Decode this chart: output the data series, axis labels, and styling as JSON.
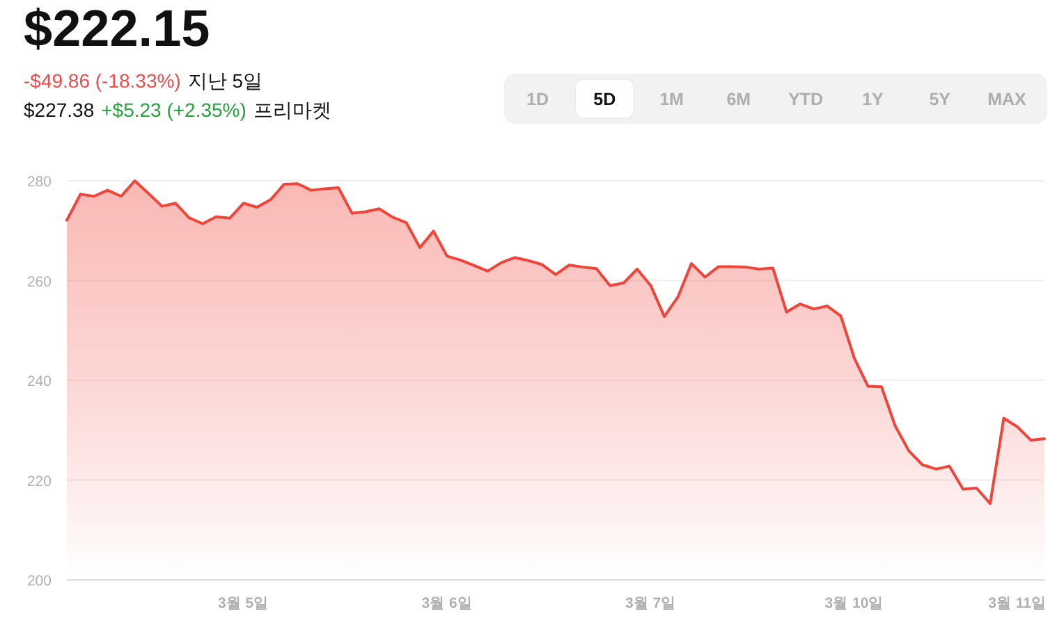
{
  "chart_data": {
    "type": "area",
    "title": "$222.15",
    "annotations": [
      "-$49.86 (-18.33%)",
      "지난 5일",
      "$227.38",
      "+$5.23 (+2.35%)",
      "프리마켓",
      "1D",
      "5D",
      "1M",
      "6M",
      "YTD",
      "1Y",
      "5Y",
      "MAX"
    ],
    "categories": [
      null,
      null,
      null,
      null,
      null,
      null,
      null,
      null,
      null,
      null,
      null,
      null,
      null,
      "3월 5일",
      null,
      null,
      null,
      null,
      null,
      null,
      null,
      null,
      null,
      null,
      null,
      null,
      null,
      null,
      "3월 6일",
      null,
      null,
      null,
      null,
      null,
      null,
      null,
      null,
      null,
      null,
      null,
      null,
      null,
      null,
      "3월 7일",
      null,
      null,
      null,
      null,
      null,
      null,
      null,
      null,
      null,
      null,
      null,
      null,
      null,
      null,
      "3월 10일",
      null,
      null,
      null,
      null,
      null,
      null,
      null,
      null,
      null,
      null,
      null,
      "3월 11일",
      null,
      null
    ],
    "values": [
      272.1,
      277.3,
      276.9,
      278.1,
      276.9,
      280,
      277.5,
      274.9,
      275.5,
      272.6,
      271.4,
      272.8,
      272.5,
      275.5,
      274.7,
      276.2,
      279.3,
      279.4,
      278.1,
      278.4,
      278.6,
      273.5,
      273.8,
      274.4,
      272.7,
      271.6,
      266.6,
      269.9,
      264.9,
      264.1,
      263.0,
      261.9,
      263.6,
      264.6,
      264.0,
      263.2,
      261.2,
      263.1,
      262.7,
      262.4,
      259.0,
      259.5,
      262.3,
      259.0,
      252.8,
      256.7,
      263.4,
      260.7,
      262.8,
      262.8,
      262.7,
      262.3,
      262.5,
      253.7,
      255.3,
      254.3,
      254.9,
      252.9,
      244.4,
      238.8,
      238.7,
      230.9,
      225.9,
      223.1,
      222.2,
      222.8,
      218.2,
      218.4,
      215.3,
      232.4,
      230.7,
      228.0,
      228.3
    ],
    "color": "#f0453a",
    "ylim": [
      200,
      280
    ],
    "yticks": [
      200,
      220,
      240,
      260,
      280
    ],
    "grid": "y"
  }
}
